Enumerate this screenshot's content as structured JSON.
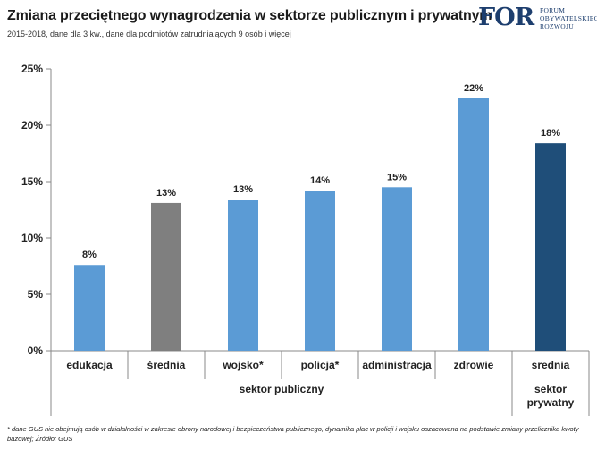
{
  "header": {
    "title": "Zmiana przeciętnego wynagrodzenia w sektorze publicznym i prywatnym",
    "subtitle": "2015-2018, dane dla 3 kw.,  dane dla podmiotów  zatrudniających  9 osób  i więcej"
  },
  "logo": {
    "mark": "FOR",
    "line1": "FORUM",
    "line2": "OBYWATELSKIEGO",
    "line3": "ROZWOJU",
    "color": "#1d3e6e"
  },
  "chart_data": {
    "type": "bar",
    "categories": [
      "edukacja",
      "średnia",
      "wojsko*",
      "policja*",
      "administracja",
      "zdrowie",
      "srednia"
    ],
    "values": [
      7.6,
      13.1,
      13.4,
      14.2,
      14.5,
      22.4,
      18.4
    ],
    "data_labels": [
      "8%",
      "13%",
      "13%",
      "14%",
      "15%",
      "22%",
      "18%"
    ],
    "bar_colors": [
      "#5b9bd5",
      "#7f7f7f",
      "#5b9bd5",
      "#5b9bd5",
      "#5b9bd5",
      "#5b9bd5",
      "#1f4e79"
    ],
    "groups": [
      {
        "label": "sektor publiczny",
        "start": 0,
        "end": 5
      },
      {
        "label": "sektor prywatny",
        "start": 6,
        "end": 6
      }
    ],
    "yticks": [
      "0%",
      "5%",
      "10%",
      "15%",
      "20%",
      "25%"
    ],
    "ylim": [
      0,
      25
    ],
    "grid": false,
    "legend": false
  },
  "footnote": "*   dane GUS nie obejmują osób w działalności w zakresie obrony narodowej i bezpieczeństwa publicznego, dynamika płac w policji i wojsku oszacowana  na podstawie zmiany przelicznika kwoty bazowej; Źródło: GUS"
}
